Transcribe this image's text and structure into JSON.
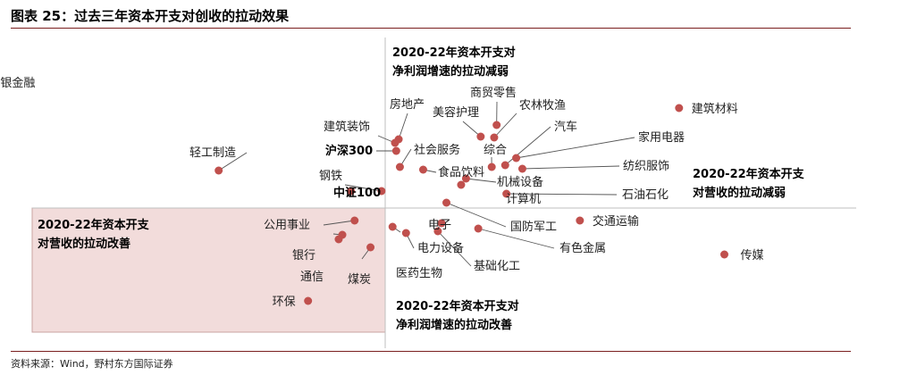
{
  "figure": {
    "title": "图表 25：过去三年资本开支对创收的拉动效果",
    "source": "资料来源：Wind，野村东方国际证券"
  },
  "chart_data": {
    "type": "scatter",
    "title": "图表 25：过去三年资本开支对创收的拉动效果",
    "xlabel": "",
    "ylabel": "",
    "grid": false,
    "marker_color": "#c0504d",
    "quadrant_shade_color": "#f2dcdb",
    "quadrant_labels": [
      {
        "position": "top",
        "text": [
          "2020-22年资本开支对",
          "净利润增速的拉动减弱"
        ]
      },
      {
        "position": "right",
        "text": [
          "2020-22年资本开支",
          "对营收的拉动减弱"
        ]
      },
      {
        "position": "left",
        "text": [
          "2020-22年资本开支",
          "对营收的拉动改善"
        ]
      },
      {
        "position": "bottom",
        "text": [
          "2020-22年资本开支对",
          "净利润增速的拉动改善"
        ]
      }
    ],
    "points": [
      {
        "name": "非银金融",
        "x": -3.34,
        "y": 1.41,
        "bold": false
      },
      {
        "name": "轻工制造",
        "x": -1.36,
        "y": 0.42,
        "bold": false
      },
      {
        "name": "建筑材料",
        "x": 2.4,
        "y": 1.12,
        "bold": false
      },
      {
        "name": "沪深300",
        "x": 0.09,
        "y": 0.64,
        "bold": true
      },
      {
        "name": "中证100",
        "x": -0.28,
        "y": 0.19,
        "bold": true
      },
      {
        "name": "钢铁",
        "x": -0.03,
        "y": 0.19,
        "bold": false
      },
      {
        "name": "建筑装饰",
        "x": 0.08,
        "y": 0.73,
        "bold": false
      },
      {
        "name": "房地产",
        "x": 0.11,
        "y": 0.77,
        "bold": false
      },
      {
        "name": "美容护理",
        "x": 0.78,
        "y": 0.8,
        "bold": false
      },
      {
        "name": "商贸零售",
        "x": 0.91,
        "y": 0.93,
        "bold": false
      },
      {
        "name": "农林牧渔",
        "x": 0.89,
        "y": 0.79,
        "bold": false
      },
      {
        "name": "社会服务",
        "x": 0.12,
        "y": 0.46,
        "bold": false
      },
      {
        "name": "综合",
        "x": 0.87,
        "y": 0.46,
        "bold": false
      },
      {
        "name": "汽车",
        "x": 0.98,
        "y": 0.48,
        "bold": false
      },
      {
        "name": "家用电器",
        "x": 1.07,
        "y": 0.56,
        "bold": false
      },
      {
        "name": "食品饮料",
        "x": 0.31,
        "y": 0.43,
        "bold": false
      },
      {
        "name": "纺织服饰",
        "x": 1.12,
        "y": 0.44,
        "bold": false
      },
      {
        "name": "机械设备",
        "x": 0.66,
        "y": 0.33,
        "bold": false
      },
      {
        "name": "计算机",
        "x": 0.62,
        "y": 0.26,
        "bold": false
      },
      {
        "name": "石油石化",
        "x": 0.99,
        "y": 0.16,
        "bold": false
      },
      {
        "name": "国防军工",
        "x": 0.5,
        "y": 0.06,
        "bold": false
      },
      {
        "name": "交通运输",
        "x": 1.59,
        "y": -0.14,
        "bold": false
      },
      {
        "name": "电子",
        "x": 0.46,
        "y": -0.17,
        "bold": false
      },
      {
        "name": "有色金属",
        "x": 0.76,
        "y": -0.23,
        "bold": false
      },
      {
        "name": "电力设备",
        "x": 0.17,
        "y": -0.28,
        "bold": false
      },
      {
        "name": "基础化工",
        "x": 0.43,
        "y": -0.26,
        "bold": false
      },
      {
        "name": "医药生物",
        "x": 0.06,
        "y": -0.21,
        "bold": false
      },
      {
        "name": "传媒",
        "x": 2.77,
        "y": -0.52,
        "bold": false
      },
      {
        "name": "公用事业",
        "x": -0.25,
        "y": -0.14,
        "bold": false
      },
      {
        "name": "银行",
        "x": -0.35,
        "y": -0.3,
        "bold": false
      },
      {
        "name": "通信",
        "x": -0.38,
        "y": -0.35,
        "bold": false
      },
      {
        "name": "煤炭",
        "x": -0.12,
        "y": -0.44,
        "bold": false
      },
      {
        "name": "环保",
        "x": -0.63,
        "y": -1.04,
        "bold": false
      }
    ]
  }
}
